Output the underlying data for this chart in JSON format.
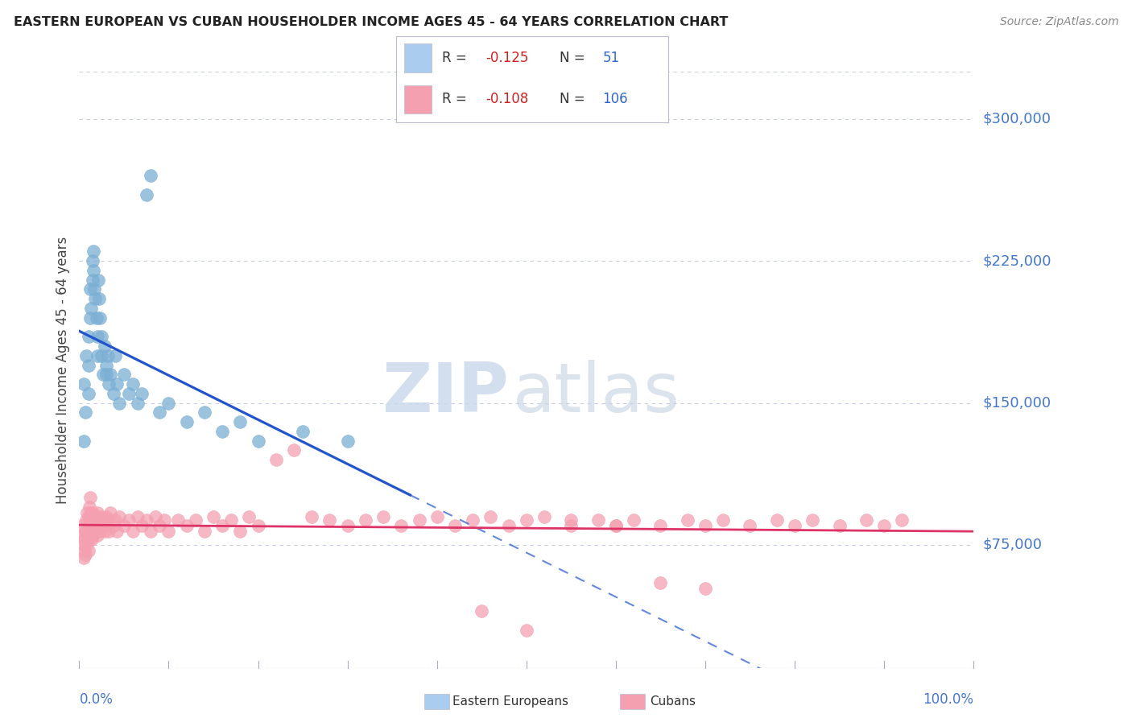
{
  "title": "EASTERN EUROPEAN VS CUBAN HOUSEHOLDER INCOME AGES 45 - 64 YEARS CORRELATION CHART",
  "source": "Source: ZipAtlas.com",
  "ylabel": "Householder Income Ages 45 - 64 years",
  "ytick_labels": [
    "$75,000",
    "$150,000",
    "$225,000",
    "$300,000"
  ],
  "ytick_values": [
    75000,
    150000,
    225000,
    300000
  ],
  "ylim": [
    10000,
    325000
  ],
  "xlim": [
    0.0,
    1.0
  ],
  "eastern_european_R": -0.125,
  "eastern_european_N": 51,
  "cuban_R": -0.108,
  "cuban_N": 106,
  "eastern_european_color": "#7bafd4",
  "cuban_color": "#f4a0b0",
  "trendline_ee_color": "#2255cc",
  "trendline_cuban_color": "#dd3366",
  "background_color": "#ffffff",
  "grid_color": "#c8cce0",
  "title_color": "#222222",
  "source_color": "#888888",
  "axis_label_color": "#4477cc",
  "legend_R_color": "#cc2222",
  "legend_N_color": "#3366cc",
  "legend_text_color": "#333333",
  "ee_legend_color": "#aaccee",
  "cuban_legend_color": "#f4a0b0",
  "watermark_zip_color": "#c8d8ea",
  "watermark_atlas_color": "#c8d4e4",
  "eastern_european_x": [
    0.005,
    0.005,
    0.007,
    0.008,
    0.01,
    0.01,
    0.01,
    0.012,
    0.012,
    0.013,
    0.015,
    0.015,
    0.016,
    0.016,
    0.017,
    0.018,
    0.019,
    0.02,
    0.02,
    0.021,
    0.022,
    0.023,
    0.025,
    0.025,
    0.027,
    0.028,
    0.03,
    0.03,
    0.032,
    0.033,
    0.035,
    0.038,
    0.04,
    0.042,
    0.045,
    0.05,
    0.055,
    0.06,
    0.065,
    0.07,
    0.075,
    0.08,
    0.09,
    0.1,
    0.12,
    0.14,
    0.16,
    0.18,
    0.2,
    0.25,
    0.3
  ],
  "eastern_european_y": [
    160000,
    130000,
    145000,
    175000,
    185000,
    170000,
    155000,
    195000,
    210000,
    200000,
    225000,
    215000,
    230000,
    220000,
    210000,
    205000,
    195000,
    185000,
    175000,
    215000,
    205000,
    195000,
    185000,
    175000,
    165000,
    180000,
    170000,
    165000,
    175000,
    160000,
    165000,
    155000,
    175000,
    160000,
    150000,
    165000,
    155000,
    160000,
    150000,
    155000,
    260000,
    270000,
    145000,
    150000,
    140000,
    145000,
    135000,
    140000,
    130000,
    135000,
    130000
  ],
  "cuban_x": [
    0.003,
    0.004,
    0.005,
    0.005,
    0.006,
    0.006,
    0.007,
    0.007,
    0.008,
    0.008,
    0.009,
    0.009,
    0.01,
    0.01,
    0.01,
    0.011,
    0.011,
    0.012,
    0.012,
    0.013,
    0.013,
    0.014,
    0.014,
    0.015,
    0.015,
    0.016,
    0.017,
    0.018,
    0.019,
    0.02,
    0.02,
    0.021,
    0.022,
    0.023,
    0.025,
    0.025,
    0.027,
    0.028,
    0.03,
    0.03,
    0.032,
    0.033,
    0.035,
    0.038,
    0.04,
    0.042,
    0.045,
    0.05,
    0.055,
    0.06,
    0.065,
    0.07,
    0.075,
    0.08,
    0.085,
    0.09,
    0.095,
    0.1,
    0.11,
    0.12,
    0.13,
    0.14,
    0.15,
    0.16,
    0.17,
    0.18,
    0.19,
    0.2,
    0.22,
    0.24,
    0.26,
    0.28,
    0.3,
    0.32,
    0.34,
    0.36,
    0.38,
    0.4,
    0.42,
    0.44,
    0.46,
    0.48,
    0.5,
    0.52,
    0.55,
    0.58,
    0.6,
    0.62,
    0.65,
    0.68,
    0.7,
    0.72,
    0.75,
    0.78,
    0.8,
    0.82,
    0.85,
    0.88,
    0.9,
    0.92,
    0.45,
    0.5,
    0.55,
    0.6,
    0.65,
    0.7
  ],
  "cuban_y": [
    85000,
    80000,
    75000,
    68000,
    72000,
    78000,
    82000,
    70000,
    88000,
    75000,
    92000,
    80000,
    85000,
    72000,
    90000,
    95000,
    78000,
    100000,
    82000,
    88000,
    92000,
    78000,
    85000,
    80000,
    92000,
    88000,
    82000,
    90000,
    85000,
    80000,
    92000,
    85000,
    88000,
    82000,
    90000,
    85000,
    88000,
    82000,
    85000,
    90000,
    88000,
    82000,
    92000,
    85000,
    88000,
    82000,
    90000,
    85000,
    88000,
    82000,
    90000,
    85000,
    88000,
    82000,
    90000,
    85000,
    88000,
    82000,
    88000,
    85000,
    88000,
    82000,
    90000,
    85000,
    88000,
    82000,
    90000,
    85000,
    120000,
    125000,
    90000,
    88000,
    85000,
    88000,
    90000,
    85000,
    88000,
    90000,
    85000,
    88000,
    90000,
    85000,
    88000,
    90000,
    85000,
    88000,
    85000,
    88000,
    85000,
    88000,
    85000,
    88000,
    85000,
    88000,
    85000,
    88000,
    85000,
    88000,
    85000,
    88000,
    40000,
    30000,
    88000,
    85000,
    55000,
    52000
  ]
}
